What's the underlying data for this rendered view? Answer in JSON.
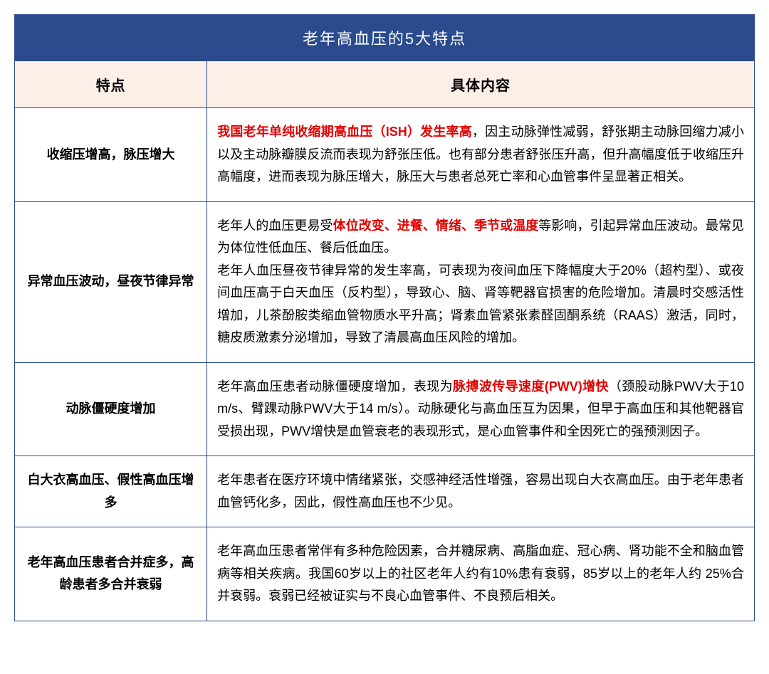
{
  "table": {
    "title": "老年高血压的5大特点",
    "columns": [
      "特点",
      "具体内容"
    ],
    "border_color": "#2a4b8d",
    "title_bg_color": "#2a4b8d",
    "title_text_color": "#ffffff",
    "header_bg_color": "#fcefe8",
    "header_text_color": "#000000",
    "cell_text_color": "#000000",
    "highlight_color": "#e30000",
    "title_fontsize": 22,
    "header_fontsize": 20,
    "cell_fontsize": 18,
    "rows": [
      {
        "feature": "收缩压增高，脉压增大",
        "detail_pre": "",
        "detail_highlight": "我国老年单纯收缩期高血压（ISH）发生率高",
        "detail_post": "，因主动脉弹性减弱，舒张期主动脉回缩力减小以及主动脉瓣膜反流而表现为舒张压低。也有部分患者舒张压升高，但升高幅度低于收缩压升高幅度，进而表现为脉压增大，脉压大与患者总死亡率和心血管事件呈显著正相关。"
      },
      {
        "feature": "异常血压波动，昼夜节律异常",
        "detail_pre": "老年人的血压更易受",
        "detail_highlight": "体位改变、进餐、情绪、季节或温度",
        "detail_post": "等影响，引起异常血压波动。最常见为体位性低血压、餐后低血压。\n老年人血压昼夜节律异常的发生率高，可表现为夜间血压下降幅度大于20%（超杓型）、或夜间血压高于白天血压（反杓型），导致心、脑、肾等靶器官损害的危险增加。清晨时交感活性增加，儿茶酚胺类缩血管物质水平升高；肾素血管紧张素醛固酮系统（RAAS）激活，同时，糖皮质激素分泌增加，导致了清晨高血压风险的增加。"
      },
      {
        "feature": "动脉僵硬度增加",
        "detail_pre": "老年高血压患者动脉僵硬度增加，表现为",
        "detail_highlight": "脉搏波传导速度(PWV)增快",
        "detail_post": "（颈股动脉PWV大于10 m/s、臂踝动脉PWV大于14 m/s）。动脉硬化与高血压互为因果，但早于高血压和其他靶器官受损出现，PWV增快是血管衰老的表现形式，是心血管事件和全因死亡的强预测因子。"
      },
      {
        "feature": "白大衣高血压、假性高血压增多",
        "detail_pre": "老年患者在医疗环境中情绪紧张，交感神经活性增强，容易出现白大衣高血压。由于老年患者血管钙化多，因此，假性高血压也不少见。",
        "detail_highlight": "",
        "detail_post": ""
      },
      {
        "feature": "老年高血压患者合并症多，高龄患者多合并衰弱",
        "detail_pre": "老年高血压患者常伴有多种危险因素，合并糖尿病、高脂血症、冠心病、肾功能不全和脑血管病等相关疾病。我国60岁以上的社区老年人约有10%患有衰弱，85岁以上的老年人约 25%合并衰弱。衰弱已经被证实与不良心血管事件、不良预后相关。",
        "detail_highlight": "",
        "detail_post": ""
      }
    ]
  }
}
